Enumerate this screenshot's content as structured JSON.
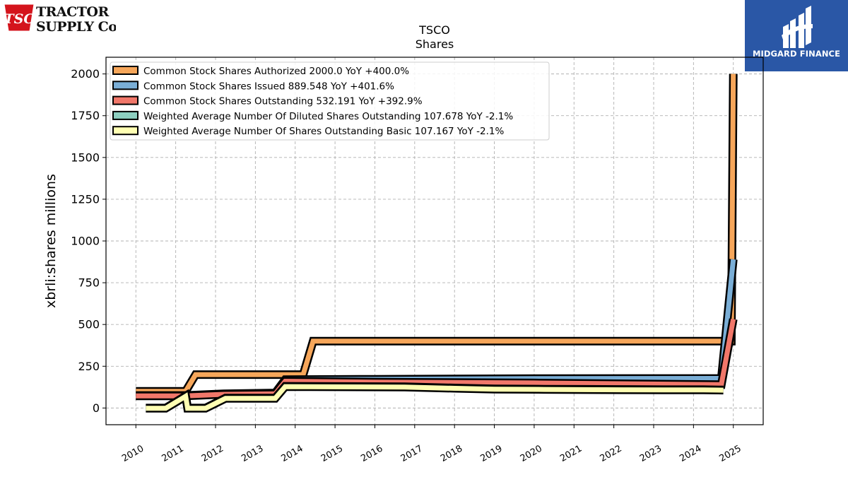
{
  "branding": {
    "company_logo_text": "TRACTOR SUPPLY Co",
    "company_logo_badge": "TSC",
    "watermark_text": "MIDGARD FINANCE"
  },
  "chart_data": {
    "type": "line",
    "title": "TSCO",
    "subtitle": "Shares",
    "ylabel": "xbrli:shares millions",
    "xlabel": "",
    "ylim": [
      -100,
      2100
    ],
    "xlim": [
      2009.25,
      2025.75
    ],
    "yticks": [
      0,
      250,
      500,
      750,
      1000,
      1250,
      1500,
      1750,
      2000
    ],
    "xticks": [
      2010,
      2011,
      2012,
      2013,
      2014,
      2015,
      2016,
      2017,
      2018,
      2019,
      2020,
      2021,
      2022,
      2023,
      2024,
      2025
    ],
    "grid": true,
    "legend_position": "top-left",
    "series": [
      {
        "name": "Common Stock Shares Authorized",
        "legend_label": "Common Stock Shares Authorized  2000.0 YoY +400.0%",
        "color": "#f6a65a",
        "x": [
          2010.0,
          2011.25,
          2011.5,
          2014.2,
          2014.45,
          2024.7,
          2024.95,
          2025.0
        ],
        "y": [
          100,
          100,
          200,
          200,
          400,
          400,
          400,
          2000
        ]
      },
      {
        "name": "Common Stock Shares Issued",
        "legend_label": "Common Stock Shares Issued  889.548 YoY +401.6%",
        "color": "#7aaed6",
        "x": [
          2010.0,
          2011.25,
          2012.2,
          2013.5,
          2013.75,
          2016.0,
          2020.0,
          2024.7,
          2025.0
        ],
        "y": [
          75,
          75,
          85,
          90,
          170,
          172,
          176,
          177,
          890
        ]
      },
      {
        "name": "Common Stock Shares Outstanding",
        "legend_label": "Common Stock Shares Outstanding  532.191 YoY +392.9%",
        "color": "#f1776a",
        "x": [
          2010.0,
          2011.25,
          2012.2,
          2013.5,
          2013.75,
          2016.0,
          2020.0,
          2024.7,
          2025.0
        ],
        "y": [
          72,
          72,
          82,
          85,
          160,
          155,
          150,
          140,
          532
        ]
      },
      {
        "name": "Weighted Average Number Of Diluted Shares Outstanding",
        "legend_label": "Weighted Average Number Of Diluted Shares Outstanding  107.678 YoY -2.1%",
        "color": "#8dcfc0",
        "x": [
          2010.25,
          2010.75,
          2011.25,
          2011.3,
          2011.75,
          2012.25,
          2013.5,
          2013.75,
          2016.75,
          2018.0,
          2019.0,
          2020.25,
          2021.25,
          2022.25,
          2023.25,
          2024.25,
          2024.75
        ],
        "y": [
          0,
          0,
          72,
          0,
          0,
          60,
          60,
          130,
          127,
          120,
          115,
          113,
          112,
          111,
          110,
          110,
          108
        ]
      },
      {
        "name": "Weighted Average Number Of Shares Outstanding Basic",
        "legend_label": "Weighted Average Number Of Shares Outstanding Basic  107.167 YoY -2.1%",
        "color": "#ffffb3",
        "x": [
          2010.25,
          2010.75,
          2011.25,
          2011.3,
          2011.75,
          2012.25,
          2013.5,
          2013.75,
          2016.75,
          2018.0,
          2019.0,
          2020.25,
          2021.25,
          2022.25,
          2023.25,
          2024.25,
          2024.75
        ],
        "y": [
          -2,
          -2,
          70,
          -2,
          -2,
          58,
          58,
          128,
          125,
          118,
          113,
          111,
          110,
          109,
          108,
          108,
          107
        ]
      }
    ]
  }
}
